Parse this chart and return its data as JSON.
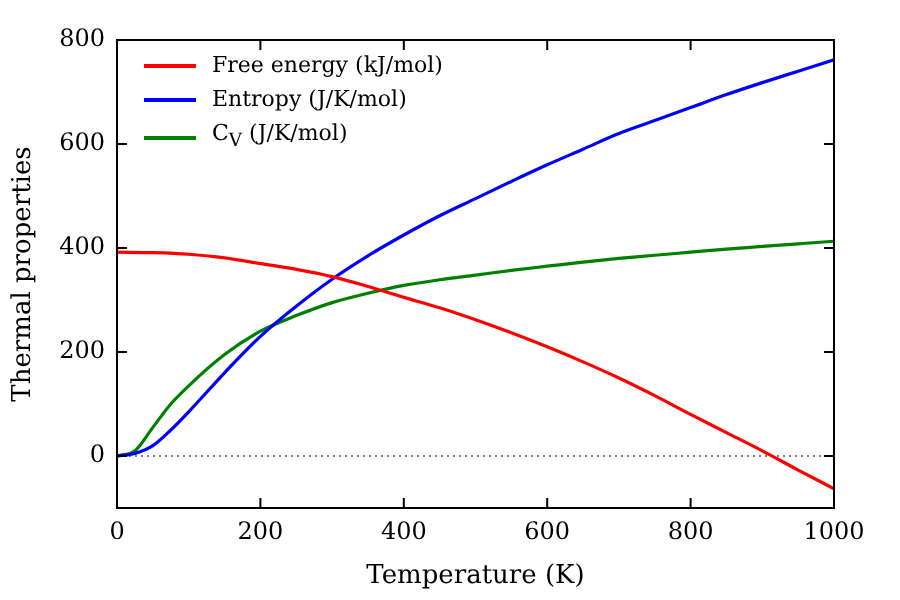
{
  "chart_data": {
    "type": "line",
    "xlabel": "Temperature (K)",
    "ylabel": "Thermal properties",
    "xlim": [
      0,
      1000
    ],
    "xticks": [
      0,
      200,
      400,
      600,
      800,
      1000
    ],
    "ylim": [
      -100,
      800
    ],
    "yticks": [
      0,
      200,
      400,
      600,
      800
    ],
    "grid": false,
    "legend": "top left",
    "line_style": "solid",
    "marker": "none",
    "ref_lines": [
      {
        "axis": "y",
        "value": 0,
        "color": "#000000",
        "line_style": "dotted"
      }
    ],
    "series": [
      {
        "name": "Free energy (kJ/mol)",
        "color": "#ff0000",
        "x": [
          0,
          50,
          100,
          150,
          200,
          250,
          300,
          350,
          400,
          450,
          500,
          550,
          600,
          650,
          700,
          750,
          800,
          850,
          900,
          950,
          1000
        ],
        "values": [
          392,
          391,
          388,
          381,
          370,
          359,
          345,
          326,
          305,
          285,
          262,
          237,
          210,
          181,
          150,
          116,
          80,
          45,
          10,
          -27,
          -63
        ]
      },
      {
        "name": "Entropy (J/K/mol)",
        "color": "#0000ff",
        "x": [
          0,
          25,
          50,
          75,
          100,
          150,
          200,
          250,
          300,
          350,
          400,
          450,
          500,
          550,
          600,
          650,
          700,
          750,
          800,
          850,
          900,
          950,
          1000
        ],
        "values": [
          0,
          5,
          20,
          50,
          85,
          160,
          230,
          288,
          340,
          385,
          425,
          462,
          495,
          528,
          560,
          590,
          620,
          645,
          670,
          695,
          718,
          740,
          762
        ]
      },
      {
        "name": "C$_{V}$ (J/K/mol)",
        "color": "#008000",
        "x": [
          0,
          25,
          50,
          75,
          100,
          150,
          200,
          250,
          300,
          350,
          400,
          450,
          500,
          550,
          600,
          650,
          700,
          750,
          800,
          850,
          900,
          950,
          1000
        ],
        "values": [
          0,
          10,
          55,
          100,
          135,
          195,
          240,
          270,
          295,
          313,
          328,
          339,
          348,
          357,
          365,
          373,
          380,
          386,
          392,
          398,
          403,
          408,
          413
        ]
      }
    ]
  }
}
